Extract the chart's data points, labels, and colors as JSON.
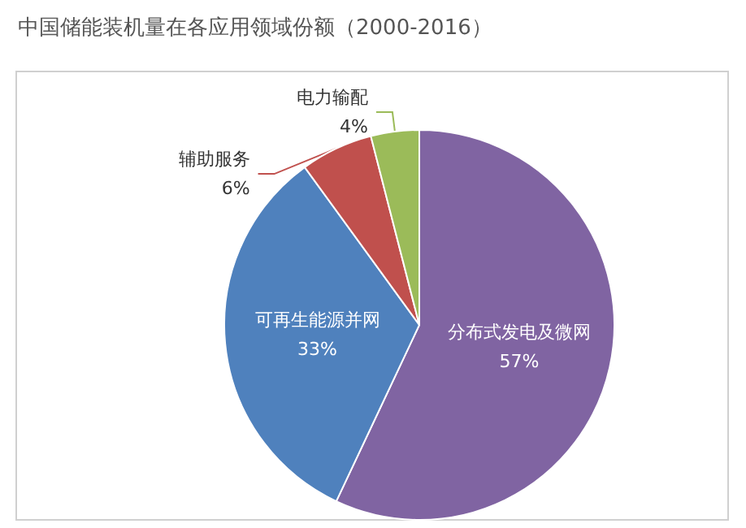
{
  "chart_data": {
    "type": "pie",
    "title": "中国储能装机量在各应用领域份额（2000-2016）",
    "categories": [
      "分布式发电及微网",
      "可再生能源并网",
      "辅助服务",
      "电力输配"
    ],
    "values": [
      57,
      33,
      6,
      4
    ],
    "colors": [
      "#8064a2",
      "#4f81bd",
      "#c0504d",
      "#9bbb59"
    ],
    "value_labels": [
      "57%",
      "33%",
      "6%",
      "4%"
    ],
    "legend": false
  }
}
